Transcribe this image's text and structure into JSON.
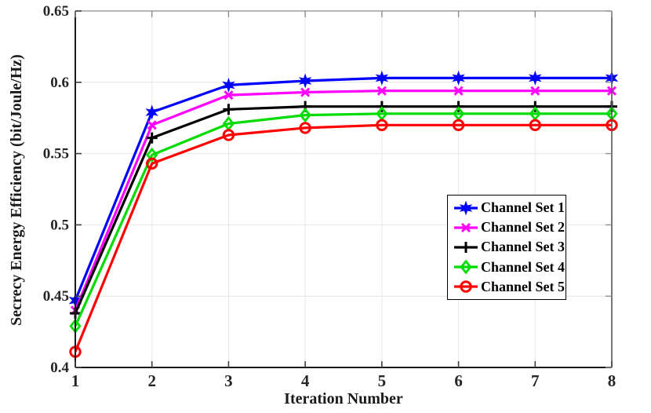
{
  "figure": {
    "background": "#ffffff",
    "axis_color": "#2b2b2b",
    "grid_color": "#e6e6e6",
    "tick_label_color": "#262626"
  },
  "chart_data": {
    "type": "line",
    "title": "",
    "xlabel": "Iteration Number",
    "ylabel": "Secrecy Energy Efficiency (bit/Joule/Hz)",
    "xlim": [
      1,
      8
    ],
    "ylim": [
      0.4,
      0.65
    ],
    "grid": true,
    "legend_position": "right-center",
    "x": [
      1,
      2,
      3,
      4,
      5,
      6,
      7,
      8
    ],
    "xtick_labels": [
      "1",
      "2",
      "3",
      "4",
      "5",
      "6",
      "7",
      "8"
    ],
    "yticks": [
      0.4,
      0.45,
      0.5,
      0.55,
      0.6,
      0.65
    ],
    "ytick_labels": [
      "0.4",
      "0.45",
      "0.5",
      "0.55",
      "0.6",
      "0.65"
    ],
    "series": [
      {
        "name": "Channel Set 1",
        "color": "#0000ff",
        "marker": "hexagram",
        "values": [
          0.447,
          0.579,
          0.598,
          0.601,
          0.603,
          0.603,
          0.603,
          0.603
        ]
      },
      {
        "name": "Channel Set 2",
        "color": "#ff00ff",
        "marker": "x",
        "values": [
          0.44,
          0.57,
          0.591,
          0.593,
          0.594,
          0.594,
          0.594,
          0.594
        ]
      },
      {
        "name": "Channel Set 3",
        "color": "#000000",
        "marker": "plus",
        "values": [
          0.438,
          0.561,
          0.581,
          0.583,
          0.583,
          0.583,
          0.583,
          0.583
        ]
      },
      {
        "name": "Channel Set 4",
        "color": "#00dc00",
        "marker": "diamond",
        "values": [
          0.429,
          0.549,
          0.571,
          0.577,
          0.578,
          0.578,
          0.578,
          0.578
        ]
      },
      {
        "name": "Channel Set 5",
        "color": "#ff0000",
        "marker": "circle",
        "values": [
          0.411,
          0.543,
          0.563,
          0.568,
          0.57,
          0.57,
          0.57,
          0.57
        ]
      }
    ]
  }
}
